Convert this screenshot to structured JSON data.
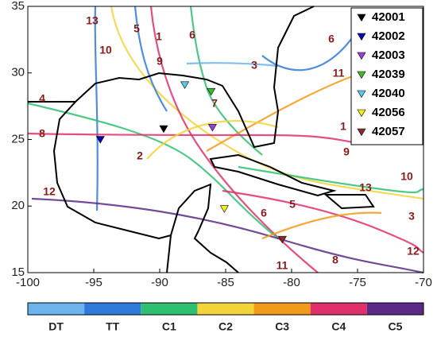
{
  "map": {
    "xlim": [
      -100,
      -70
    ],
    "ylim": [
      15,
      35
    ],
    "xticks": [
      -100,
      -95,
      -90,
      -85,
      -80,
      -75,
      -70
    ],
    "yticks": [
      15,
      20,
      25,
      30,
      35
    ],
    "buoys": [
      {
        "id": "42001",
        "color": "#000000",
        "lon": -89.7,
        "lat": 25.8
      },
      {
        "id": "42002",
        "color": "#0a0aa8",
        "lon": -94.5,
        "lat": 25.0
      },
      {
        "id": "42003",
        "color": "#9b3fd6",
        "lon": -86.0,
        "lat": 25.9
      },
      {
        "id": "42039",
        "color": "#46b82e",
        "lon": -86.1,
        "lat": 28.6
      },
      {
        "id": "42040",
        "color": "#5cc8f0",
        "lon": -88.1,
        "lat": 29.1
      },
      {
        "id": "42056",
        "color": "#f0f020",
        "lon": -85.1,
        "lat": 19.8
      },
      {
        "id": "42057",
        "color": "#8b2a2a",
        "lon": -80.7,
        "lat": 17.5
      }
    ],
    "track_labels": [
      "13",
      "5",
      "1",
      "6",
      "10",
      "9",
      "3",
      "6",
      "11",
      "4",
      "7",
      "8",
      "2",
      "1",
      "9",
      "10",
      "13",
      "12",
      "6",
      "5",
      "3",
      "11",
      "8",
      "12"
    ],
    "colorbar": [
      {
        "label": "DT",
        "color": "#6cb4ee"
      },
      {
        "label": "TT",
        "color": "#2f79d9"
      },
      {
        "label": "C1",
        "color": "#2fbf71"
      },
      {
        "label": "C2",
        "color": "#f2d33a"
      },
      {
        "label": "C3",
        "color": "#f29a1a"
      },
      {
        "label": "C4",
        "color": "#e0306a"
      },
      {
        "label": "C5",
        "color": "#5b2a86"
      }
    ]
  }
}
